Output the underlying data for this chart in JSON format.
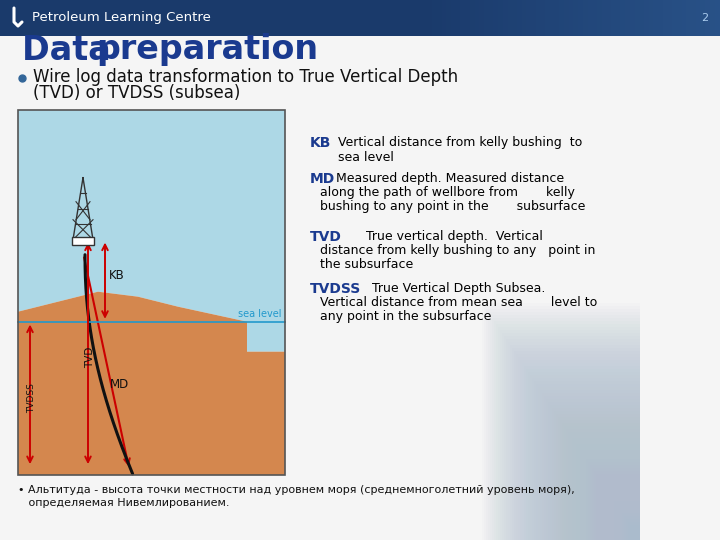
{
  "header_bg_color": "#1a3a6b",
  "header_text": "Petroleum Learning Centre",
  "header_text_color": "#ffffff",
  "slide_bg_color": "#f5f5f5",
  "title_bold": "Data ",
  "title_regular": "preparation",
  "title_color": "#1a3a8f",
  "bullet_text_line1": "Wire log data transformation to True Vertical Depth",
  "bullet_text_line2": "(TVD) or TVDSS (subsea)",
  "label_color": "#1a3a8f",
  "def_color": "#000000",
  "footer_text": "• Альтитуда - высота точки местности над уровнем моря (среднемноголетний уровень моря),",
  "footer_text2": "   определяемая Нивемлированием.",
  "footer_color": "#111111",
  "diagram": {
    "ground_color": "#d4874e",
    "sea_color": "#add8e6",
    "sea_level_label_color": "#2299cc",
    "sea_label": "sea level",
    "kb_diagram_label": "KB",
    "tvd_diagram_label": "TVD",
    "tvdss_diagram_label": "TVDSS",
    "md_diagram_label": "MD",
    "arrow_color": "#cc0000",
    "wellbore_color": "#111111"
  }
}
